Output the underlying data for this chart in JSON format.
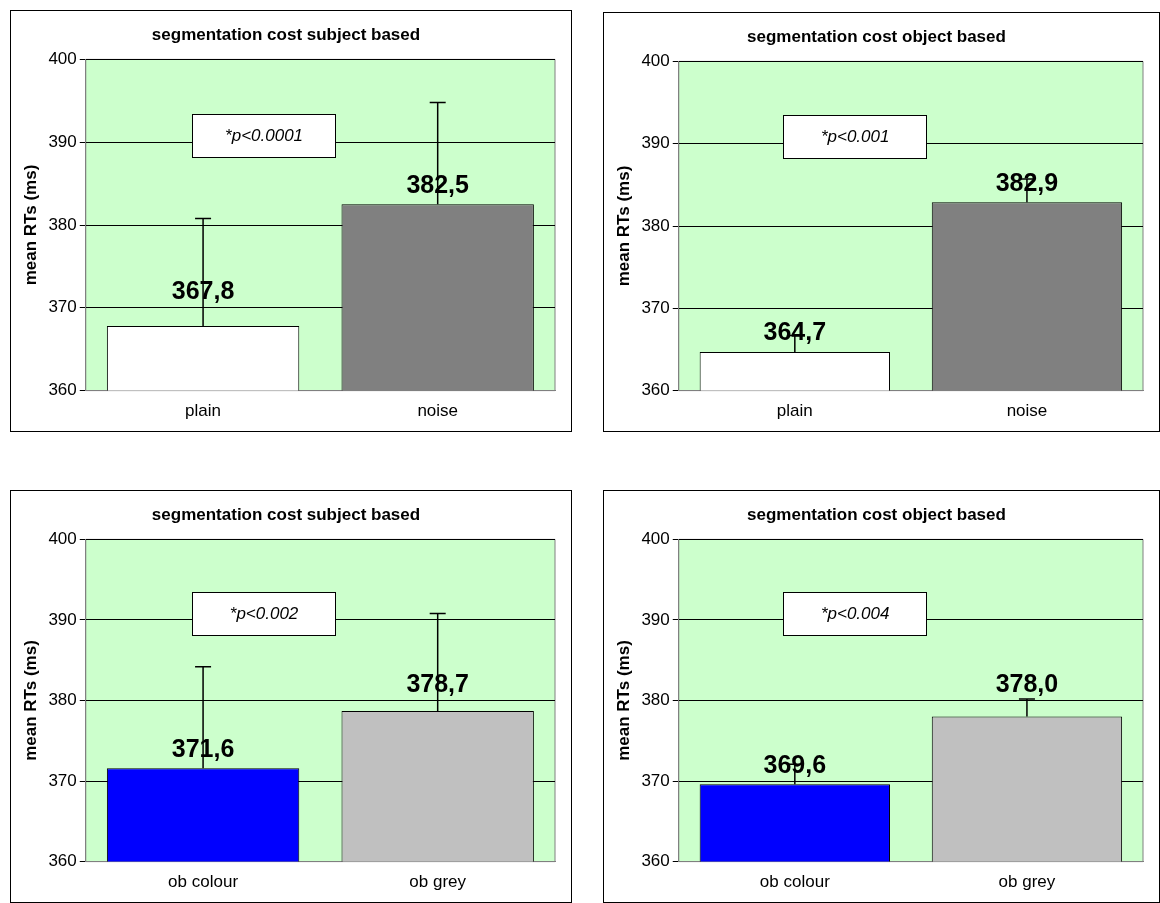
{
  "chart_data": [
    {
      "type": "bar",
      "title": "segmentation cost subject based",
      "ylabel": "mean RTs (ms)",
      "categories": [
        "plain",
        "noise"
      ],
      "values": [
        367.8,
        382.5
      ],
      "value_labels": [
        "367,8",
        "382,5"
      ],
      "colors": [
        "#ffffff",
        "#808080"
      ],
      "errors": [
        [
          367.8,
          380.8
        ],
        [
          382.5,
          394.8
        ]
      ],
      "ylim": [
        360,
        400
      ],
      "yticks": [
        360,
        370,
        380,
        390,
        400
      ],
      "grid": "y",
      "annotations": [
        "*p<0.0001"
      ]
    },
    {
      "type": "bar",
      "title": "segmentation cost object based",
      "ylabel": "mean RTs (ms)",
      "categories": [
        "plain",
        "noise"
      ],
      "values": [
        364.7,
        382.9
      ],
      "value_labels": [
        "364,7",
        "382,9"
      ],
      "colors": [
        "#ffffff",
        "#808080"
      ],
      "errors": [
        [
          364.7,
          366.7
        ],
        [
          382.9,
          385.7
        ]
      ],
      "ylim": [
        360,
        400
      ],
      "yticks": [
        360,
        370,
        380,
        390,
        400
      ],
      "grid": "y",
      "annotations": [
        "*p<0.001"
      ]
    },
    {
      "type": "bar",
      "title": "segmentation cost subject based",
      "ylabel": "mean RTs (ms)",
      "categories": [
        "ob colour",
        "ob grey"
      ],
      "values": [
        371.6,
        378.7
      ],
      "value_labels": [
        "371,6",
        "378,7"
      ],
      "colors": [
        "#0000ff",
        "#c0c0c0"
      ],
      "errors": [
        [
          371.6,
          384.2
        ],
        [
          378.7,
          390.8
        ]
      ],
      "ylim": [
        360,
        400
      ],
      "yticks": [
        360,
        370,
        380,
        390,
        400
      ],
      "grid": "y",
      "annotations": [
        "*p<0.002"
      ]
    },
    {
      "type": "bar",
      "title": "segmentation cost object based",
      "ylabel": "mean RTs (ms)",
      "categories": [
        "ob colour",
        "ob grey"
      ],
      "values": [
        369.6,
        378.0
      ],
      "value_labels": [
        "369,6",
        "378,0"
      ],
      "colors": [
        "#0000ff",
        "#c0c0c0"
      ],
      "errors": [
        [
          369.6,
          372.1
        ],
        [
          378.0,
          380.2
        ]
      ],
      "ylim": [
        360,
        400
      ],
      "yticks": [
        360,
        370,
        380,
        390,
        400
      ],
      "grid": "y",
      "annotations": [
        "*p<0.004"
      ]
    }
  ]
}
